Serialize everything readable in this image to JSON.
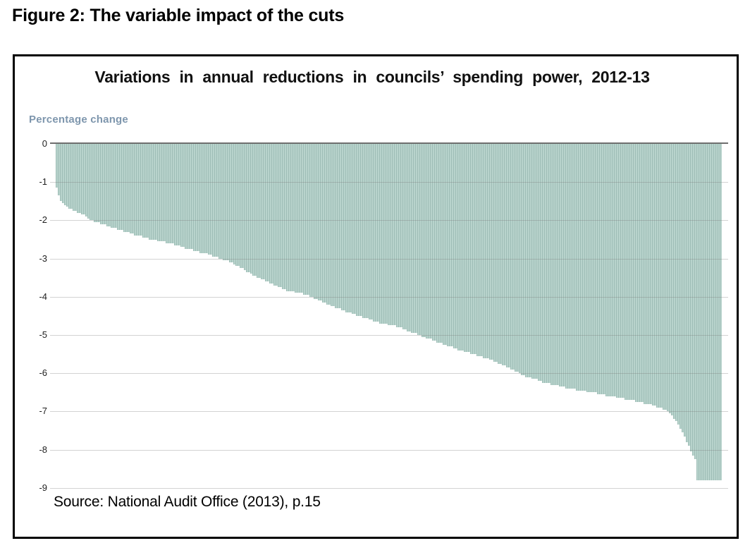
{
  "figure": {
    "heading": "Figure 2: The variable impact of the cuts"
  },
  "chart": {
    "title": "Variations in annual reductions in councils’ spending power, 2012-13",
    "y_axis_label": "Percentage change",
    "source": "Source: National Audit Office (2013), p.15"
  },
  "chart_data": {
    "type": "bar",
    "title": "Variations in annual reductions in councils’ spending power, 2012-13",
    "xlabel": "",
    "ylabel": "Percentage change",
    "ylim": [
      -9,
      0
    ],
    "grid": true,
    "legend": "none",
    "y_ticks": [
      0,
      -1,
      -2,
      -3,
      -4,
      -5,
      -6,
      -7,
      -8,
      -9
    ],
    "y_tick_labels": [
      "0",
      "-1",
      "-2",
      "-3",
      "-4",
      "-5",
      "-6",
      "-7",
      "-8",
      "-9"
    ],
    "num_bars": 315,
    "sorted": "descending impact left to right, one thin bar per council",
    "value_anchors_fraction_value": [
      [
        0.0,
        -1.15
      ],
      [
        0.002,
        -1.22
      ],
      [
        0.004,
        -1.45
      ],
      [
        0.007,
        -1.52
      ],
      [
        0.011,
        -1.58
      ],
      [
        0.016,
        -1.65
      ],
      [
        0.023,
        -1.72
      ],
      [
        0.034,
        -1.8
      ],
      [
        0.044,
        -1.9
      ],
      [
        0.052,
        -2.0
      ],
      [
        0.069,
        -2.1
      ],
      [
        0.087,
        -2.2
      ],
      [
        0.105,
        -2.3
      ],
      [
        0.122,
        -2.4
      ],
      [
        0.14,
        -2.48
      ],
      [
        0.158,
        -2.55
      ],
      [
        0.175,
        -2.62
      ],
      [
        0.193,
        -2.72
      ],
      [
        0.21,
        -2.8
      ],
      [
        0.228,
        -2.88
      ],
      [
        0.246,
        -3.0
      ],
      [
        0.263,
        -3.1
      ],
      [
        0.281,
        -3.28
      ],
      [
        0.298,
        -3.45
      ],
      [
        0.316,
        -3.6
      ],
      [
        0.333,
        -3.72
      ],
      [
        0.341,
        -3.8
      ],
      [
        0.376,
        -3.95
      ],
      [
        0.412,
        -4.22
      ],
      [
        0.447,
        -4.45
      ],
      [
        0.481,
        -4.65
      ],
      [
        0.517,
        -4.8
      ],
      [
        0.552,
        -5.05
      ],
      [
        0.587,
        -5.27
      ],
      [
        0.623,
        -5.48
      ],
      [
        0.658,
        -5.67
      ],
      [
        0.693,
        -5.95
      ],
      [
        0.7,
        -6.05
      ],
      [
        0.735,
        -6.24
      ],
      [
        0.771,
        -6.39
      ],
      [
        0.806,
        -6.5
      ],
      [
        0.841,
        -6.62
      ],
      [
        0.877,
        -6.75
      ],
      [
        0.901,
        -6.85
      ],
      [
        0.921,
        -7.0
      ],
      [
        0.933,
        -7.25
      ],
      [
        0.942,
        -7.5
      ],
      [
        0.949,
        -7.78
      ],
      [
        0.954,
        -8.0
      ],
      [
        0.962,
        -8.25
      ],
      [
        0.964,
        -8.8
      ],
      [
        1.0,
        -8.8
      ]
    ],
    "colors": {
      "bar_fill": "#b8d3cc",
      "bar_edge": "#9ebdb6",
      "gridline": "#d9d9d9",
      "zero_line": "#6e6e6e",
      "y_axis_label_text": "#7e96ad",
      "tick_label_text": "#1f1f1f",
      "box_border": "#000000"
    }
  }
}
